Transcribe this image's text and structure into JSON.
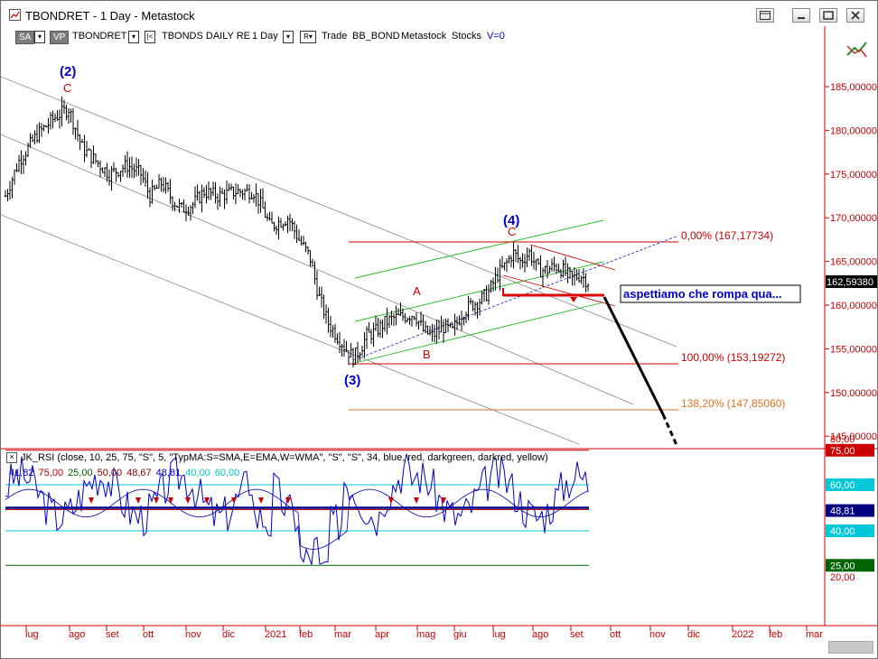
{
  "window": {
    "title": "TBONDRET - 1 Day - Metastock"
  },
  "toolbar": {
    "sa_label": "SA",
    "vp_label": "VP",
    "symbol": "TBONDRET",
    "security_name": "TBONDS DAILY RE",
    "periodicity": "1 Day",
    "r_label": "R",
    "trade_label": "Trade",
    "template": "BB_BOND",
    "app_name": "Metastock",
    "category": "Stocks",
    "v_label": "V=0"
  },
  "price_axis": {
    "ticks": [
      "185,00000",
      "180,00000",
      "175,00000",
      "170,00000",
      "165,00000",
      "160,00000",
      "155,00000",
      "150,00000",
      "145,00000"
    ],
    "last_price": "162,59380"
  },
  "annotations": {
    "wave2": "(2)",
    "wave2_c": "C",
    "wave3": "(3)",
    "wave4": "(4)",
    "wave4_c": "C",
    "wave_a": "A",
    "wave_b": "B",
    "fib0": "0,00% (167,17734)",
    "fib100": "100,00% (153,19272)",
    "fib138": "138,20% (147,85060)",
    "comment": "aspettiamo che rompa qua..."
  },
  "rsi": {
    "close_label": "×",
    "header": "JK_RSI   (close,  10,  25,  75,  \"S\",  5,  \"TypMA:S=SMA,E=EMA,W=WMA\",  \"S\",  \"S\",  34,  blue,  red,  darkgreen,  darkred,  yellow)",
    "values": [
      {
        "text": "41,82",
        "color": "#0000cc"
      },
      {
        "text": "75,00",
        "color": "#cc0000"
      },
      {
        "text": "25,00",
        "color": "#006400"
      },
      {
        "text": "50,00",
        "color": "#8b0000"
      },
      {
        "text": "48,67",
        "color": "#8b0000"
      },
      {
        "text": "48,81",
        "color": "#0000cc"
      },
      {
        "text": "40,00",
        "color": "#00c8d8"
      },
      {
        "text": "60,00",
        "color": "#00c8d8"
      }
    ],
    "axis_ticks": [
      "80,00",
      "20,00"
    ],
    "badges": {
      "b75": "75,00",
      "b60": "60,00",
      "b4881": "48,81",
      "b40": "40,00",
      "b25": "25,00"
    }
  },
  "time_axis": [
    "lug",
    "ago",
    "set",
    "ott",
    "nov",
    "dic",
    "2021",
    "feb",
    "mar",
    "apr",
    "mag",
    "giu",
    "lug",
    "ago",
    "set",
    "ott",
    "nov",
    "dic",
    "2022",
    "feb",
    "mar"
  ],
  "colors": {
    "axis_text": "#cc0000",
    "wave_label": "#0000cc",
    "price_label_bg": "#000000"
  }
}
